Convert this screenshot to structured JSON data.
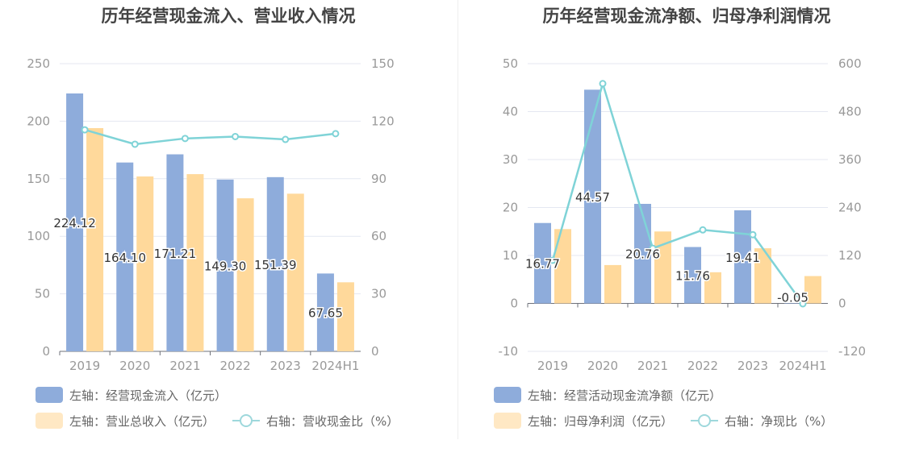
{
  "colors": {
    "bar1": "#8eacdb",
    "bar2": "#ffd99b",
    "line": "#7fd3d7",
    "grid": "#e4e7f1",
    "axis": "#999999"
  },
  "charts": [
    {
      "title": "历年经营现金流入、营业收入情况",
      "legend": {
        "bar1": "左轴：经营现金流入（亿元）",
        "bar2": "左轴：营业总收入（亿元）",
        "line": "右轴：营收现金比（%）"
      }
    },
    {
      "title": "历年经营现金流净额、归母净利润情况",
      "legend": {
        "bar1": "左轴：经营活动现金流净额（亿元）",
        "bar2": "左轴：归母净利润（亿元）",
        "line": "右轴：净现比（%）"
      }
    }
  ],
  "chart_data": [
    {
      "type": "bar",
      "categories": [
        "2019",
        "2020",
        "2021",
        "2022",
        "2023",
        "2024H1"
      ],
      "series": [
        {
          "name": "左轴：经营现金流入（亿元）",
          "axis": "left",
          "kind": "bar",
          "values": [
            224.12,
            164.1,
            171.21,
            149.3,
            151.39,
            67.65
          ],
          "labels": [
            "224.12",
            "164.10",
            "171.21",
            "149.30",
            "151.39",
            "67.65"
          ]
        },
        {
          "name": "左轴：营业总收入（亿元）",
          "axis": "left",
          "kind": "bar",
          "values": [
            194,
            152,
            154,
            133,
            137,
            60
          ]
        },
        {
          "name": "右轴：营收现金比（%）",
          "axis": "right",
          "kind": "line",
          "values": [
            115.5,
            108,
            111,
            112,
            110.5,
            113.5
          ]
        }
      ],
      "left_axis": {
        "min": 0,
        "max": 250,
        "ticks": [
          "0",
          "50",
          "100",
          "150",
          "200",
          "250"
        ]
      },
      "right_axis": {
        "min": 0,
        "max": 150,
        "ticks": [
          "0",
          "30",
          "60",
          "90",
          "120",
          "150"
        ]
      },
      "grid": true,
      "legend_position": "bottom"
    },
    {
      "type": "bar",
      "categories": [
        "2019",
        "2020",
        "2021",
        "2022",
        "2023",
        "2024H1"
      ],
      "series": [
        {
          "name": "左轴：经营活动现金流净额（亿元）",
          "axis": "left",
          "kind": "bar",
          "values": [
            16.77,
            44.57,
            20.76,
            11.76,
            19.41,
            -0.05
          ],
          "labels": [
            "16.77",
            "44.57",
            "20.76",
            "11.76",
            "19.41",
            "-0.05"
          ]
        },
        {
          "name": "左轴：归母净利润（亿元）",
          "axis": "left",
          "kind": "bar",
          "values": [
            15.5,
            8,
            15,
            6.5,
            11.5,
            5.7
          ]
        },
        {
          "name": "右轴：净现比（%）",
          "axis": "right",
          "kind": "line",
          "values": [
            108,
            550,
            138,
            184,
            172,
            -1
          ]
        }
      ],
      "left_axis": {
        "min": -10,
        "max": 50,
        "ticks": [
          "-10",
          "0",
          "10",
          "20",
          "30",
          "40",
          "50"
        ]
      },
      "right_axis": {
        "min": -120,
        "max": 600,
        "ticks": [
          "-120",
          "0",
          "120",
          "240",
          "360",
          "480",
          "600"
        ]
      },
      "grid": true,
      "legend_position": "bottom"
    }
  ]
}
